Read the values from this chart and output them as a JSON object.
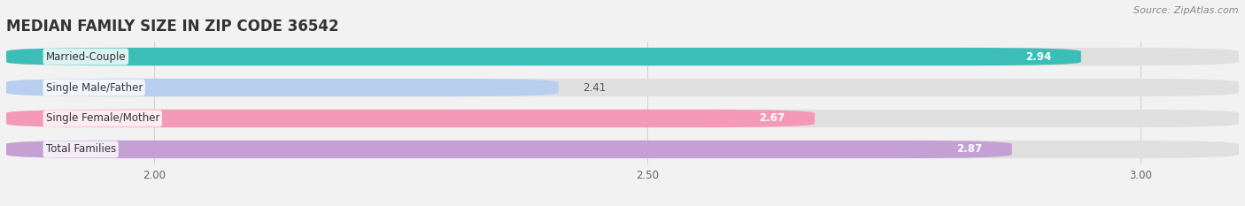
{
  "title": "MEDIAN FAMILY SIZE IN ZIP CODE 36542",
  "source": "Source: ZipAtlas.com",
  "categories": [
    "Married-Couple",
    "Single Male/Father",
    "Single Female/Mother",
    "Total Families"
  ],
  "values": [
    2.94,
    2.41,
    2.67,
    2.87
  ],
  "bar_colors": [
    "#3dbdb8",
    "#b8cff0",
    "#f599b8",
    "#c4a0d4"
  ],
  "bar_height": 0.58,
  "bar_gap": 0.15,
  "xlim": [
    1.85,
    3.1
  ],
  "xticks": [
    2.0,
    2.5,
    3.0
  ],
  "background_color": "#f2f2f2",
  "bar_bg_color": "#e0e0e0",
  "title_fontsize": 12,
  "label_fontsize": 8.5,
  "value_fontsize": 8.5,
  "source_fontsize": 8,
  "tick_fontsize": 8.5,
  "value_threshold": 2.5
}
